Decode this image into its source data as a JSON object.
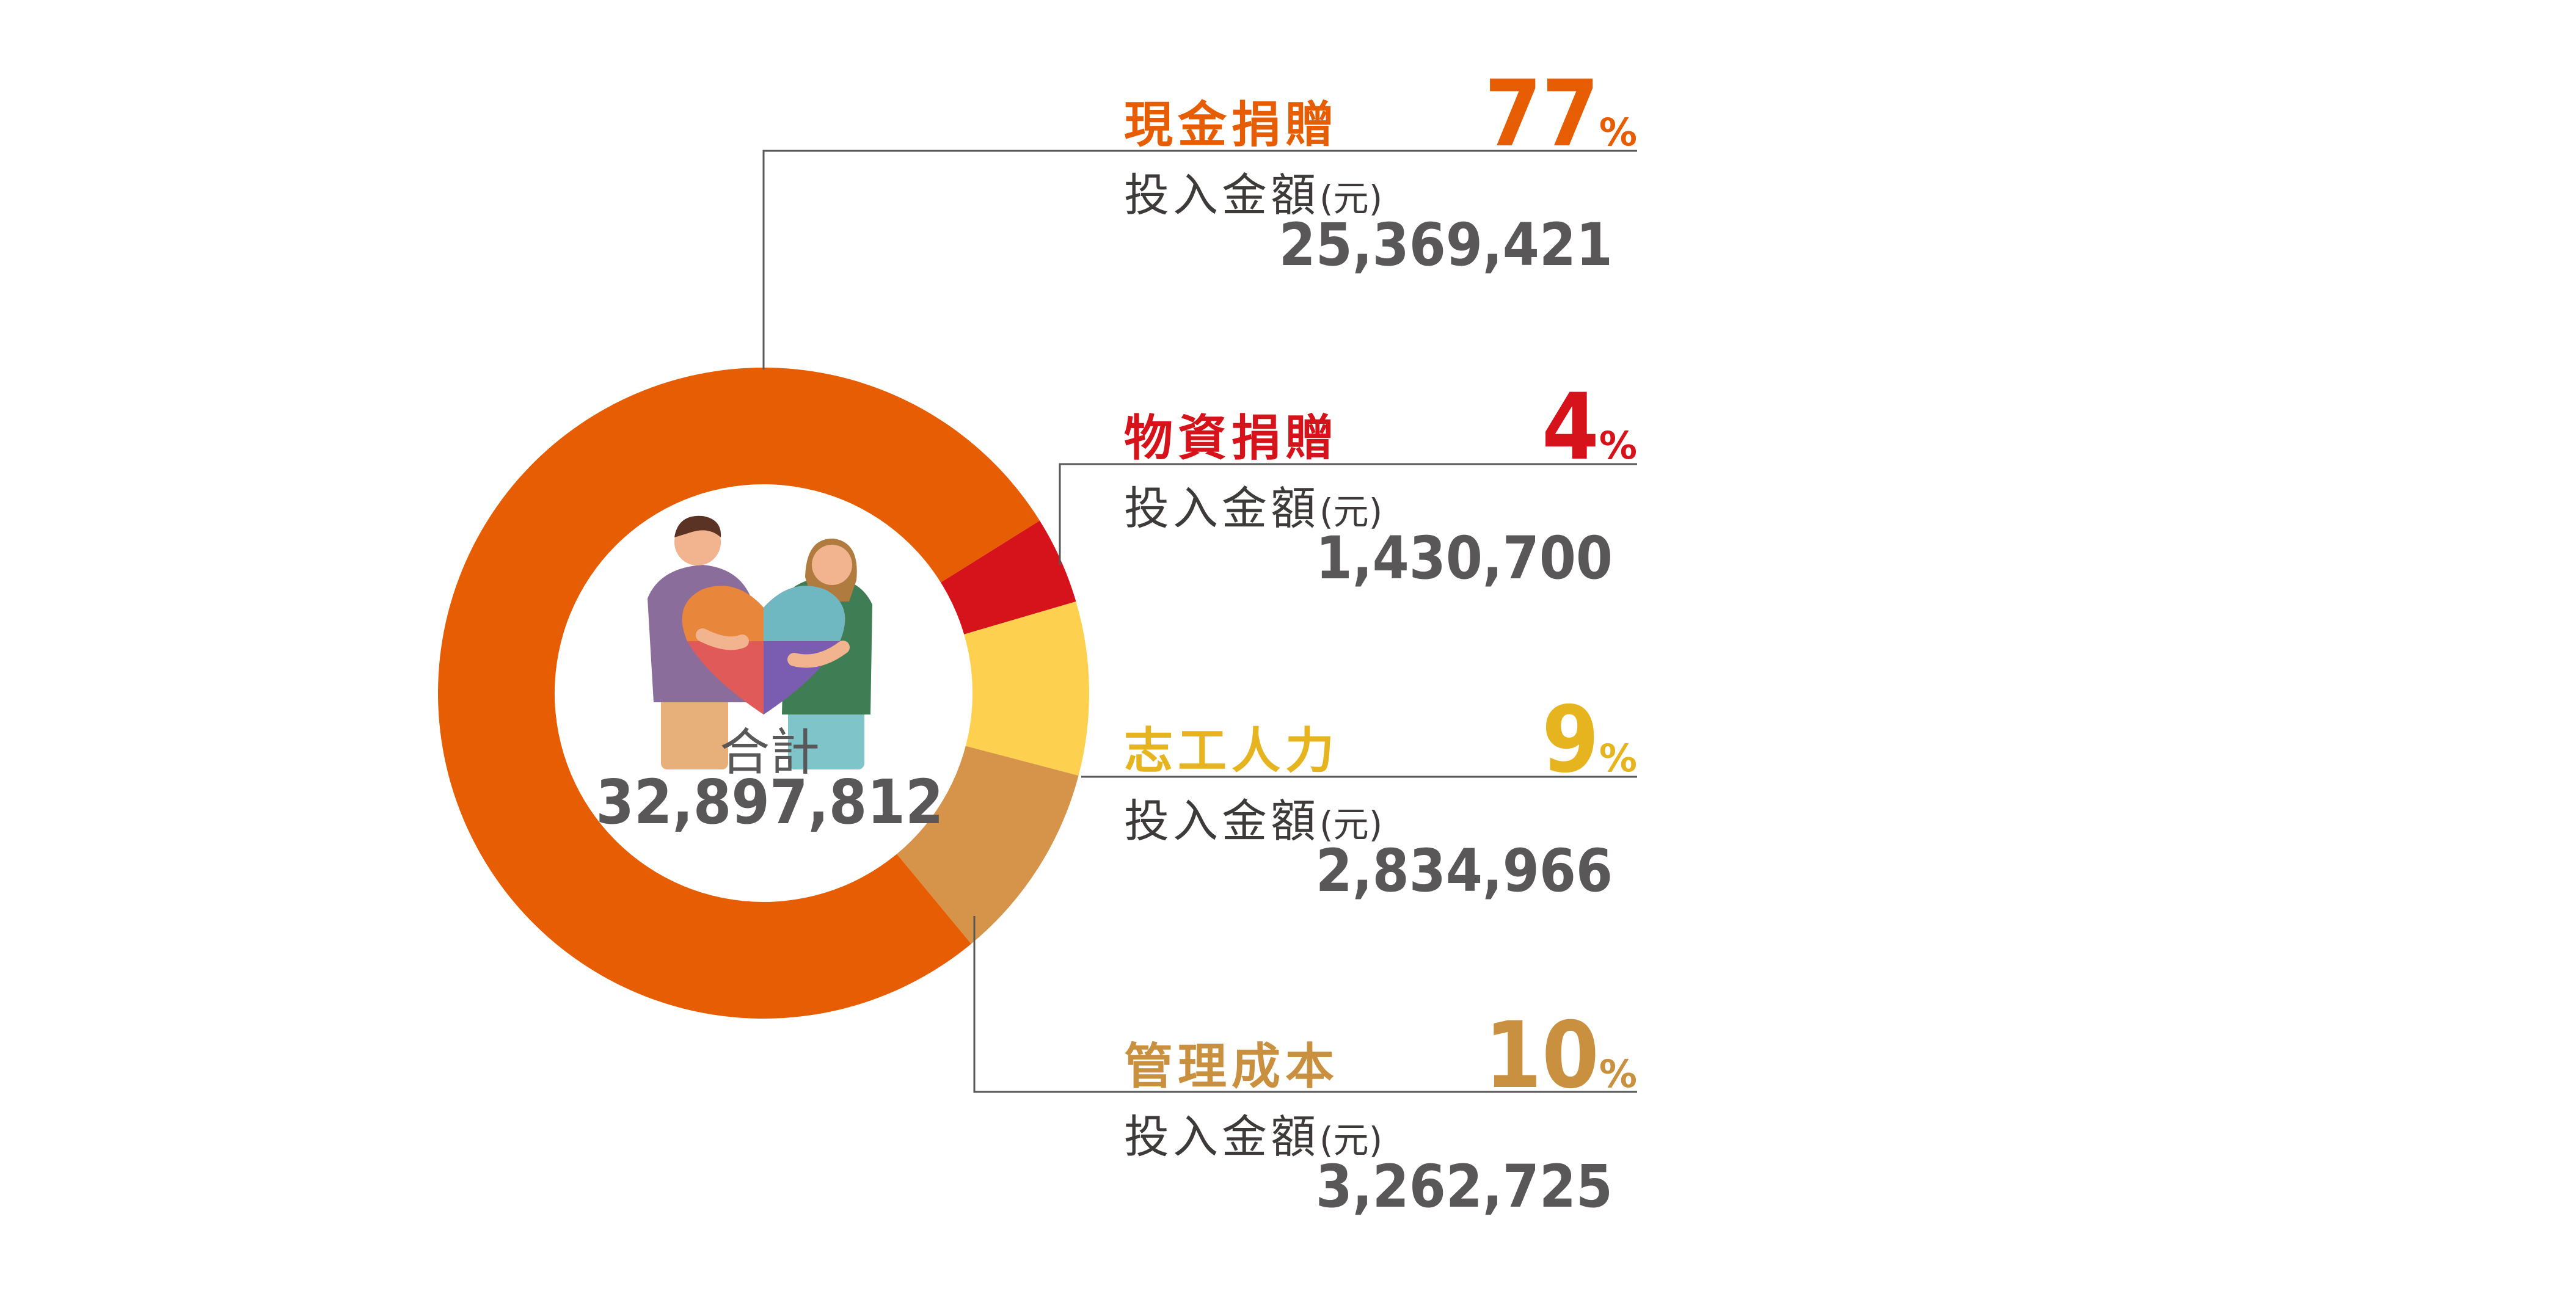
{
  "chart_data": {
    "type": "pie",
    "center": {
      "title": "合計",
      "value": "32,897,812"
    },
    "amount_label": "投入金額",
    "amount_unit": "(元)",
    "percent_symbol": "%",
    "slices": [
      {
        "label": "現金捐贈",
        "percent": 77,
        "percent_text": "77",
        "amount": 25369421,
        "amount_text": "25,369,421",
        "color": "#E75D03"
      },
      {
        "label": "物資捐贈",
        "percent": 4,
        "percent_text": "4",
        "amount": 1430700,
        "amount_text": "1,430,700",
        "color": "#D6131B"
      },
      {
        "label": "志工人力",
        "percent": 9,
        "percent_text": "9",
        "amount": 2834966,
        "amount_text": "2,834,966",
        "color": "#FDD04F"
      },
      {
        "label": "管理成本",
        "percent": 10,
        "percent_text": "10",
        "amount": 3262725,
        "amount_text": "3,262,725",
        "color": "#D5944A"
      }
    ]
  },
  "label_colors": [
    "#E75D03",
    "#D6131B",
    "#E6B41E",
    "#C8903F"
  ],
  "line_color": "#595757",
  "illustration": "couple-holding-puzzle-heart"
}
